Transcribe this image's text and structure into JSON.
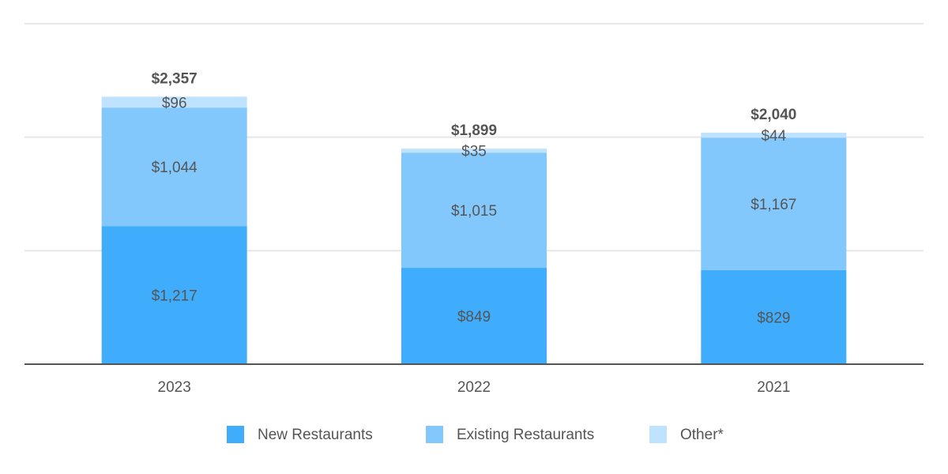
{
  "chart_data": {
    "type": "stacked_bar",
    "categories": [
      "2023",
      "2022",
      "2021"
    ],
    "series": [
      {
        "name": "New Restaurants",
        "color": "#3fadfc",
        "values": [
          1217,
          849,
          829
        ],
        "value_labels": [
          "$1,217",
          "$849",
          "$829"
        ]
      },
      {
        "name": "Existing Restaurants",
        "color": "#83c8fd",
        "values": [
          1044,
          1015,
          1167
        ],
        "value_labels": [
          "$1,044",
          "$1,015",
          "$1,167"
        ]
      },
      {
        "name": "Other*",
        "color": "#bfe3fe",
        "values": [
          96,
          35,
          44
        ],
        "value_labels": [
          "$96",
          "$35",
          "$44"
        ]
      }
    ],
    "totals": [
      2357,
      1899,
      2040
    ],
    "total_labels": [
      "$2,357",
      "$1,899",
      "$2,040"
    ],
    "ylim": [
      0,
      3000
    ],
    "yticks": [
      0,
      1000,
      2000,
      3000
    ],
    "grid": true,
    "legend": "bottom"
  }
}
